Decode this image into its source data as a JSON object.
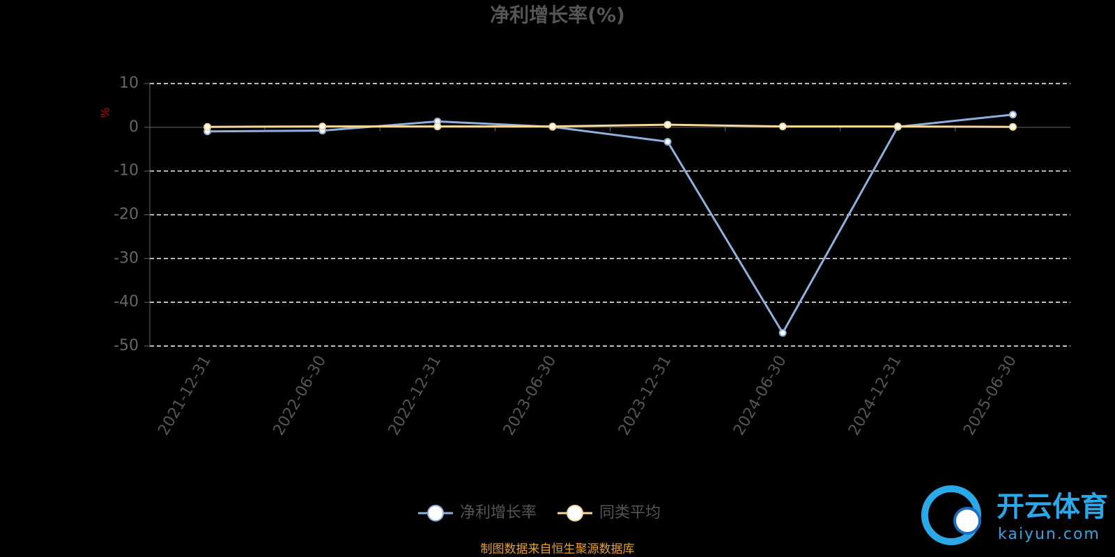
{
  "chart_data": {
    "type": "line",
    "title": "净利增长率(%)",
    "y_label": "%",
    "categories": [
      "2021-12-31",
      "2022-06-30",
      "2022-12-31",
      "2023-06-30",
      "2023-12-31",
      "2024-06-30",
      "2024-12-31",
      "2025-06-30"
    ],
    "series": [
      {
        "name": "净利增长率",
        "color": "#8fb0dc",
        "values": [
          -0.94,
          -0.76,
          1.35,
          0.1,
          -3.3,
          -47,
          0.1,
          2.9
        ]
      },
      {
        "name": "同类平均",
        "color": "#f5d89a",
        "values": [
          0.1,
          0.2,
          0.2,
          0.2,
          0.6,
          0.2,
          0.2,
          0.1
        ]
      }
    ],
    "ylim": [
      -50,
      10
    ],
    "yticks": [
      -50,
      -40,
      -30,
      -20,
      -10,
      0,
      10
    ],
    "grid": true,
    "legend": "bottom",
    "footnote": "制图数据来自恒生聚源数据库",
    "watermark": {
      "brand": "开云体育",
      "site": "kaiyun.com"
    }
  }
}
